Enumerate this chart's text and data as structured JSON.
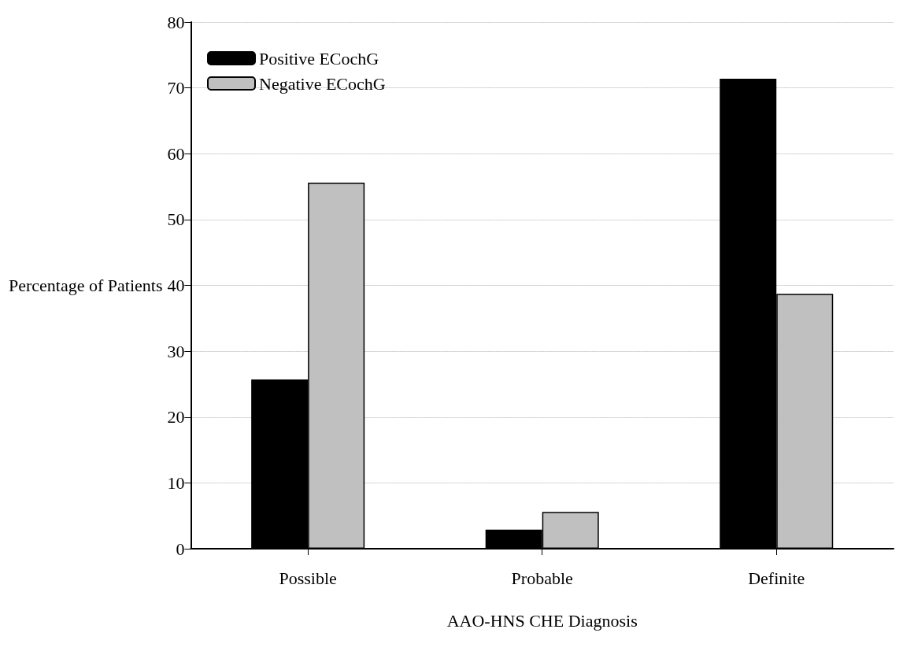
{
  "chart_data": {
    "type": "bar",
    "xlabel": "AAO-HNS CHE Diagnosis",
    "ylabel": "Percentage of Patients",
    "categories": [
      "Possible",
      "Probable",
      "Definite"
    ],
    "series": [
      {
        "name": "Positive ECochG",
        "color": "#000000",
        "values": [
          25.7,
          2.9,
          71.4
        ]
      },
      {
        "name": "Negative ECochG",
        "color": "#c0c0c0",
        "values": [
          55.6,
          5.6,
          38.7
        ]
      }
    ],
    "ylim": [
      0,
      80
    ],
    "yticks": [
      0,
      10,
      20,
      30,
      40,
      50,
      60,
      70,
      80
    ],
    "grid": "y",
    "legend": "top left"
  }
}
